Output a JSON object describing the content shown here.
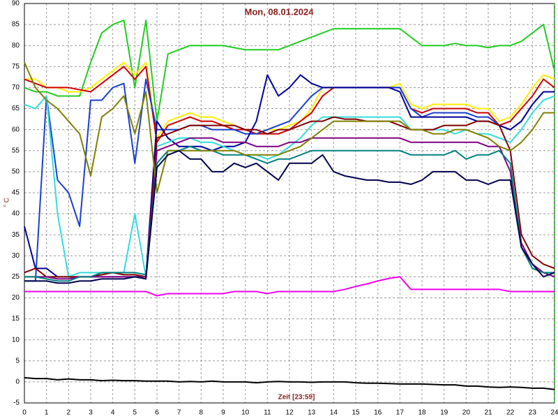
{
  "chart_data": {
    "type": "line",
    "title": "Mon, 08.01.2024",
    "x_label": "Zeit [23:59]",
    "y_label": "° C",
    "xlim": [
      0,
      24
    ],
    "ylim": [
      -5,
      90
    ],
    "grid": true,
    "xticks": [
      0,
      1,
      2,
      3,
      4,
      5,
      6,
      7,
      8,
      9,
      10,
      11,
      12,
      13,
      14,
      15,
      16,
      17,
      18,
      19,
      20,
      21,
      22,
      23,
      24
    ],
    "yticks": [
      -5,
      0,
      5,
      10,
      15,
      20,
      25,
      30,
      35,
      40,
      45,
      50,
      55,
      60,
      65,
      70,
      75,
      80,
      85,
      90
    ],
    "x": [
      0,
      0.5,
      1,
      1.5,
      2,
      2.5,
      3,
      3.5,
      4,
      4.5,
      5,
      5.5,
      6,
      6.5,
      7,
      7.5,
      8,
      8.5,
      9,
      9.5,
      10,
      10.5,
      11,
      11.5,
      12,
      12.5,
      13,
      13.5,
      14,
      14.5,
      15,
      15.5,
      16,
      16.5,
      17,
      17.5,
      18,
      18.5,
      19,
      19.5,
      20,
      20.5,
      21,
      21.5,
      22,
      22.5,
      23,
      23.5,
      24
    ],
    "series": [
      {
        "color": "#22cc22",
        "values": [
          70,
          69,
          69,
          68,
          68,
          68,
          76,
          83,
          85,
          86,
          70,
          86,
          62,
          78,
          79,
          80,
          80,
          80,
          80,
          79.5,
          79,
          79,
          79,
          79,
          80,
          81,
          82,
          83,
          84,
          84,
          84,
          84,
          84,
          84,
          84,
          82,
          80,
          80,
          80,
          80.5,
          80,
          80,
          79.5,
          80,
          80,
          81,
          83,
          85,
          74
        ]
      },
      {
        "color": "#ffee00",
        "values": [
          72,
          72,
          70,
          70,
          69,
          69,
          70,
          72,
          74,
          76,
          73,
          76,
          58,
          62,
          63,
          64,
          63,
          63,
          62,
          61,
          60,
          59,
          60,
          60,
          61,
          62,
          65,
          70,
          70,
          70,
          70,
          70,
          70,
          70,
          71,
          66,
          65,
          66,
          66,
          66,
          66,
          65,
          65,
          62,
          63,
          66,
          70,
          73,
          72
        ]
      },
      {
        "color": "#cc0000",
        "values": [
          72,
          71,
          70,
          70,
          70,
          69.5,
          69,
          71,
          73,
          75,
          72,
          75,
          57,
          61,
          62,
          63,
          62,
          62,
          61,
          60,
          60,
          59,
          59,
          59,
          60,
          62,
          64,
          68,
          70,
          70,
          70,
          70,
          70,
          70,
          70,
          65,
          64,
          65,
          65,
          65,
          65,
          64,
          64,
          61,
          62,
          65,
          68,
          72,
          70
        ]
      },
      {
        "color": "#1a3fd0",
        "values": [
          24,
          24,
          68,
          48,
          45,
          37,
          67,
          67,
          70,
          71,
          52,
          72,
          60,
          60,
          60,
          61,
          61,
          60,
          60,
          60,
          59,
          59,
          60,
          61,
          62,
          65,
          68,
          70,
          70,
          70,
          70,
          70,
          70,
          70,
          70,
          65,
          63,
          64,
          64,
          64,
          64,
          63,
          63,
          61,
          60,
          62,
          66,
          69,
          69
        ]
      },
      {
        "color": "#000099",
        "values": [
          37,
          27,
          27,
          25,
          25,
          25,
          25,
          25,
          25,
          25,
          25,
          25,
          62,
          58,
          56,
          56,
          56,
          55,
          56,
          56,
          57,
          62,
          73,
          68,
          70,
          73,
          71,
          70,
          70,
          70,
          70,
          70,
          70,
          70,
          69,
          63,
          63,
          63,
          63,
          63,
          63,
          62,
          62,
          61,
          60,
          62,
          66,
          69,
          69
        ]
      },
      {
        "color": "#33dddd",
        "values": [
          66,
          65,
          68,
          40,
          25,
          26,
          26,
          26,
          26,
          26,
          40,
          25,
          56,
          57,
          58,
          58,
          57,
          57,
          56,
          55,
          54,
          54,
          53,
          54,
          56,
          58,
          61,
          63,
          63,
          63,
          63,
          63,
          63,
          63,
          63,
          60,
          60,
          60,
          60,
          59,
          60,
          59,
          59,
          58,
          57,
          60,
          64,
          67,
          68
        ]
      },
      {
        "color": "#800000",
        "values": [
          26,
          27,
          25,
          25,
          25,
          25,
          25,
          25.5,
          26,
          25.5,
          25.5,
          25,
          58,
          59,
          60,
          61,
          61,
          61,
          61,
          61,
          60,
          60,
          59,
          60,
          60,
          61,
          62,
          62,
          63,
          62.5,
          62.5,
          62,
          62,
          62,
          61,
          60,
          60,
          60,
          61,
          61,
          61,
          62,
          62,
          61,
          55,
          35,
          30,
          28,
          27
        ]
      },
      {
        "color": "#800080",
        "values": [
          25,
          25,
          25,
          24.5,
          24.5,
          25,
          25,
          25,
          25,
          25,
          25,
          25,
          55,
          56,
          57,
          58,
          58,
          58,
          57,
          57,
          57,
          56,
          56,
          56,
          57,
          57,
          58,
          58,
          58,
          58,
          58,
          58,
          58,
          58,
          58,
          57,
          57,
          57,
          57,
          57,
          57,
          57,
          56,
          56,
          50,
          33,
          28,
          26,
          25
        ]
      },
      {
        "color": "#008080",
        "values": [
          25,
          25,
          24.5,
          24,
          24,
          25,
          25,
          26,
          26,
          26,
          26,
          25.5,
          52,
          55,
          55,
          56,
          55,
          55,
          54,
          54,
          54,
          53,
          52,
          53,
          53,
          54,
          55,
          55,
          55,
          55,
          55,
          55,
          55,
          55,
          55,
          54,
          54,
          54,
          54,
          55,
          53,
          54,
          54,
          55,
          52,
          32,
          27,
          26,
          26
        ]
      },
      {
        "color": "#808000",
        "values": [
          76,
          70,
          67,
          65,
          62,
          59,
          49,
          63,
          65,
          68,
          59,
          69,
          45,
          55,
          55,
          55,
          55,
          55,
          55,
          55,
          54,
          54,
          54,
          54,
          55,
          56,
          58,
          60,
          62,
          62,
          62,
          62,
          62,
          62,
          62,
          60,
          60,
          59,
          59,
          60,
          60,
          59,
          58,
          56,
          55,
          57,
          60,
          64,
          64
        ]
      },
      {
        "color": "#000050",
        "values": [
          24,
          24,
          24,
          23.5,
          23.5,
          24,
          24,
          24.5,
          24.5,
          24.5,
          25,
          24.5,
          51,
          54,
          55,
          53,
          53,
          50,
          50,
          52,
          51,
          52,
          50,
          48,
          52,
          52,
          52,
          54,
          50,
          49,
          48.5,
          48,
          48,
          47.5,
          47.5,
          47,
          48,
          50,
          50,
          50,
          48,
          48,
          47,
          48,
          48,
          32,
          28,
          25,
          26
        ]
      },
      {
        "color": "#ee00ee",
        "values": [
          21.5,
          21.5,
          21.5,
          21.5,
          21.5,
          21.5,
          21.5,
          21.5,
          21.5,
          21.5,
          21.5,
          21.5,
          20.5,
          21,
          21,
          21,
          21,
          21,
          21,
          21.5,
          21.5,
          21.5,
          21,
          21.5,
          21.5,
          21.5,
          21.5,
          21.5,
          21.5,
          22,
          22.7,
          23.3,
          24,
          24.6,
          25,
          22,
          22,
          22,
          22,
          22,
          22,
          22,
          22,
          22,
          21.5,
          21.5,
          21.5,
          21.5,
          21.5
        ]
      },
      {
        "color": "#000000",
        "values": [
          1,
          0.8,
          0.8,
          0.5,
          0.7,
          0.5,
          0.5,
          0.3,
          0.4,
          0.3,
          0.3,
          0.2,
          0.2,
          0.2,
          0,
          0.1,
          0,
          0.2,
          0,
          0,
          0,
          -0.2,
          0,
          0.1,
          0,
          0,
          -0.1,
          0,
          0,
          0,
          -0.2,
          -0.3,
          -0.3,
          -0.4,
          -0.5,
          -0.5,
          -0.5,
          -0.6,
          -0.7,
          -0.7,
          -1,
          -1,
          -1.2,
          -1.3,
          -1.2,
          -1.3,
          -1.5,
          -1.5,
          -1.8
        ]
      }
    ]
  }
}
